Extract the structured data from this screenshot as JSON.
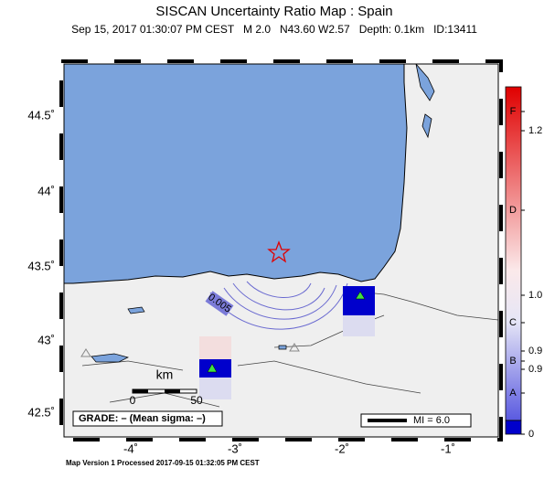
{
  "header": {
    "title": "SISCAN Uncertainty Ratio Map : Spain",
    "subtitle": "Sep 15, 2017 01:30:07 PM CEST   M 2.0   N43.60 W2.57   Depth: 0.1km   ID:13411"
  },
  "axes": {
    "longitude_labels": [
      "-4˚",
      "-3˚",
      "-2˚",
      "-1˚"
    ],
    "latitude_labels": [
      "44.5˚",
      "44˚",
      "43.5˚",
      "43˚",
      "42.5˚"
    ]
  },
  "colorbar": {
    "labels": [
      "F",
      "1.2",
      "D",
      "1.0",
      "C",
      "0.9",
      "B",
      "0.9",
      "A",
      "0"
    ]
  },
  "map": {
    "contour_label": "0.005",
    "scale_unit": "km",
    "scale_ticks": [
      "0",
      "50"
    ],
    "grade": "GRADE: – (Mean sigma: –)",
    "legend": "MI = 6.0"
  },
  "footer": "Map Version 1 Processed 2017-09-15 01:32:05 PM CEST"
}
